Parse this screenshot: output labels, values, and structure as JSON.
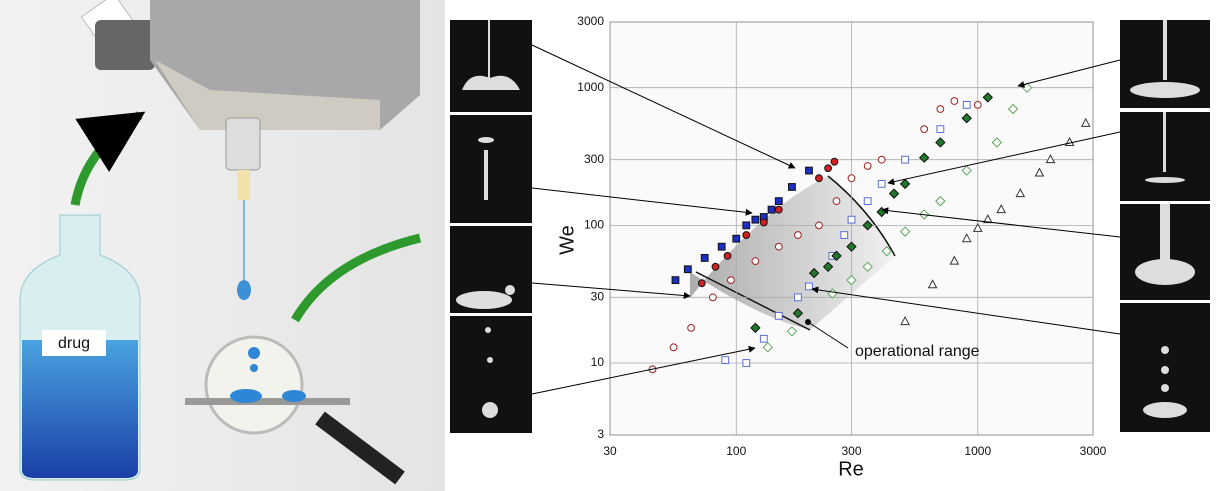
{
  "label": "drug",
  "chart_data": {
    "type": "scatter",
    "xscale": "log",
    "yscale": "log",
    "x_label": "Re",
    "y_label": "We",
    "annotation": "operational range",
    "xlim": [
      30,
      3000
    ],
    "ylim": [
      3,
      3000
    ],
    "xticks": [
      30,
      100,
      300,
      1000,
      3000
    ],
    "yticks": [
      3,
      10,
      30,
      100,
      300,
      1000,
      3000
    ],
    "grid": true,
    "series": [
      {
        "marker": "square",
        "filled": true,
        "color": "#1c2fc4",
        "x": [
          56,
          63,
          74,
          87,
          100,
          110,
          120,
          130,
          140,
          150,
          170,
          200
        ],
        "values": [
          40,
          48,
          58,
          70,
          80,
          100,
          110,
          115,
          130,
          150,
          190,
          250
        ]
      },
      {
        "marker": "circle",
        "filled": true,
        "color": "#d42020",
        "x": [
          72,
          82,
          92,
          110,
          130,
          150,
          220,
          240,
          255
        ],
        "values": [
          38,
          50,
          60,
          85,
          105,
          130,
          220,
          260,
          290
        ]
      },
      {
        "marker": "circle",
        "filled": false,
        "color": "#a02020",
        "x": [
          45,
          55,
          65,
          80,
          95,
          120,
          150,
          180,
          220,
          260,
          300,
          350,
          400,
          600,
          700,
          800,
          1000
        ],
        "values": [
          9,
          13,
          18,
          30,
          40,
          55,
          70,
          85,
          100,
          150,
          220,
          270,
          300,
          500,
          700,
          800,
          750
        ]
      },
      {
        "marker": "square",
        "filled": false,
        "color": "#5a6fd6",
        "x": [
          90,
          110,
          130,
          150,
          180,
          200,
          250,
          280,
          300,
          350,
          400,
          500,
          700,
          900
        ],
        "values": [
          10.5,
          10,
          15,
          22,
          30,
          36,
          60,
          85,
          110,
          150,
          200,
          300,
          500,
          750
        ]
      },
      {
        "marker": "diamond",
        "filled": true,
        "color": "#1e7a2a",
        "x": [
          120,
          180,
          210,
          240,
          260,
          300,
          350,
          400,
          450,
          500,
          600,
          700,
          900,
          1100
        ],
        "values": [
          18,
          23,
          45,
          50,
          60,
          70,
          100,
          125,
          170,
          200,
          310,
          400,
          600,
          850
        ]
      },
      {
        "marker": "diamond",
        "filled": false,
        "color": "#5aa85a",
        "x": [
          135,
          170,
          250,
          300,
          350,
          420,
          500,
          600,
          700,
          900,
          1200,
          1400,
          1600
        ],
        "values": [
          13,
          17,
          32,
          40,
          50,
          65,
          90,
          120,
          150,
          250,
          400,
          700,
          1000
        ]
      },
      {
        "marker": "triangle",
        "filled": false,
        "color": "#333333",
        "x": [
          500,
          650,
          800,
          900,
          1000,
          1100,
          1250,
          1500,
          1800,
          2000,
          2400,
          2800
        ],
        "values": [
          20,
          37,
          55,
          80,
          95,
          110,
          130,
          170,
          240,
          300,
          400,
          550
        ]
      }
    ]
  }
}
